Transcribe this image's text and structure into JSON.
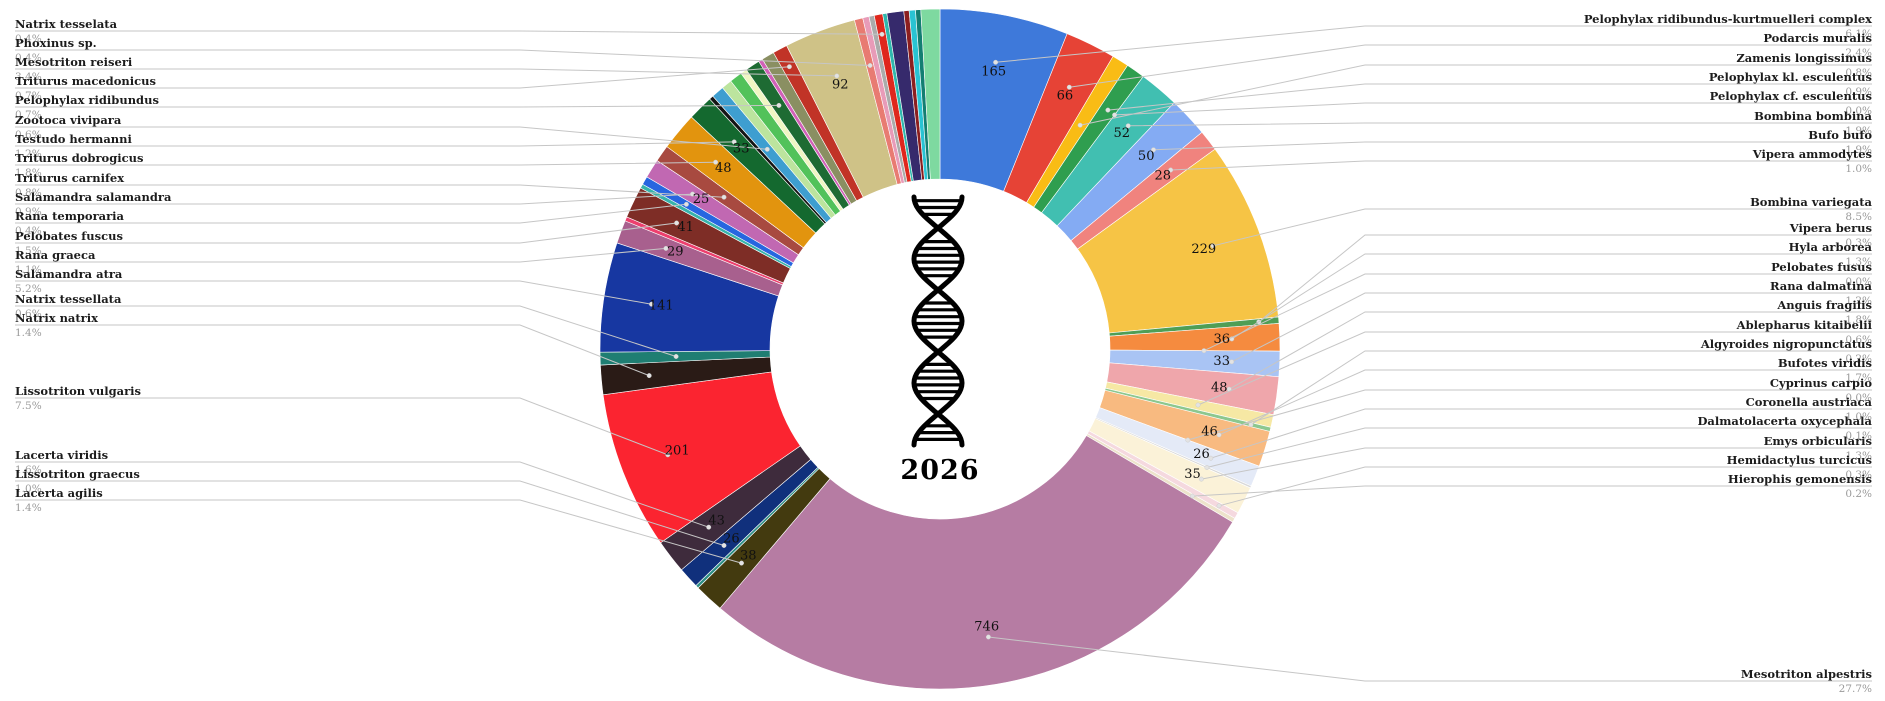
{
  "page": {
    "background": "#ffffff"
  },
  "chart_data": {
    "type": "donut",
    "title": "",
    "center": {
      "year_label": "2026",
      "icon": "dna-helix-icon"
    },
    "legend_position": "callout-labels-left-right",
    "label_percent_color": "#9b9b9b",
    "segments": [
      {
        "name": "Pelophylax ridibundus-kurtmuelleri complex",
        "pct": 6.1,
        "count": 165,
        "color": "#3E79DA"
      },
      {
        "name": "Podarcis muralis",
        "pct": 2.4,
        "count": 66,
        "color": "#E64336"
      },
      {
        "name": "Zamenis longissimus",
        "pct": 0.8,
        "count": null,
        "color": "#F9BC15"
      },
      {
        "name": "Pelophylax kl. esculentus",
        "pct": 0.9,
        "count": null,
        "color": "#2F9E4F"
      },
      {
        "name": "Pelophylax cf. esculentus",
        "pct": 0.0,
        "count": null,
        "color": "#BBBBBB"
      },
      {
        "name": "Bombina bombina",
        "pct": 1.9,
        "count": 52,
        "color": "#41BFB1"
      },
      {
        "name": "Bufo bufo",
        "pct": 1.9,
        "count": 50,
        "color": "#84ABF3"
      },
      {
        "name": "Vipera ammodytes",
        "pct": 1.0,
        "count": 28,
        "color": "#F0837E"
      },
      {
        "name": "Bombina variegata",
        "pct": 8.5,
        "count": 229,
        "color": "#F6C445"
      },
      {
        "name": "Vipera berus",
        "pct": 0.3,
        "count": null,
        "color": "#4F9E55"
      },
      {
        "name": "Hyla arborea",
        "pct": 1.3,
        "count": 36,
        "color": "#F58B3F"
      },
      {
        "name": "Pelobates fusus",
        "pct": 0.0,
        "count": null,
        "color": "#BBBBBB"
      },
      {
        "name": "Rana dalmatina",
        "pct": 1.2,
        "count": 33,
        "color": "#A9C4F4"
      },
      {
        "name": "Anguis fragilis",
        "pct": 1.8,
        "count": 48,
        "color": "#EFA6AB"
      },
      {
        "name": "Ablepharus kitaibelii",
        "pct": 0.6,
        "count": null,
        "color": "#F6E8A4"
      },
      {
        "name": "Algyroides nigropunctatus",
        "pct": 0.2,
        "count": null,
        "color": "#8CC78F"
      },
      {
        "name": "Bufotes viridis",
        "pct": 1.7,
        "count": 46,
        "color": "#F8BA80"
      },
      {
        "name": "Cyprinus carpio",
        "pct": 0.0,
        "count": null,
        "color": "#BBBBBB"
      },
      {
        "name": "Coronella austriaca",
        "pct": 1.0,
        "count": 26,
        "color": "#E4EAF7"
      },
      {
        "name": "Dalmatolacerta oxycephala",
        "pct": 0.1,
        "count": null,
        "color": "#D8D8D8"
      },
      {
        "name": "Emys orbicularis",
        "pct": 1.3,
        "count": 35,
        "color": "#FBF2D8"
      },
      {
        "name": "Hemidactylus turcicus",
        "pct": 0.3,
        "count": null,
        "color": "#F5D9DF"
      },
      {
        "name": "Hierophis gemonensis",
        "pct": 0.2,
        "count": null,
        "color": "#EDE3CB"
      },
      {
        "name": "Mesotriton alpestris",
        "pct": 27.7,
        "count": 746,
        "color": "#B67CA3"
      },
      {
        "name": "Lacerta agilis",
        "pct": 1.4,
        "count": 38,
        "color": "#433A0F"
      },
      {
        "name": "",
        "pct": 0.15,
        "count": null,
        "color": "#2F8F86"
      },
      {
        "name": "Lissotriton graecus",
        "pct": 1.0,
        "count": 26,
        "color": "#10307C"
      },
      {
        "name": "Lacerta viridis",
        "pct": 1.6,
        "count": 43,
        "color": "#3E2B3C"
      },
      {
        "name": "Lissotriton vulgaris",
        "pct": 7.5,
        "count": 201,
        "color": "#FB2430"
      },
      {
        "name": "Natrix natrix",
        "pct": 1.4,
        "count": null,
        "color": "#2A1B16"
      },
      {
        "name": "Natrix tessellata",
        "pct": 0.6,
        "count": null,
        "color": "#1F7E72"
      },
      {
        "name": "Salamandra atra",
        "pct": 5.2,
        "count": 141,
        "color": "#1737A1"
      },
      {
        "name": "Rana graeca",
        "pct": 1.1,
        "count": 29,
        "color": "#A8608E"
      },
      {
        "name": "",
        "pct": 0.2,
        "count": null,
        "color": "#ED3F6E"
      },
      {
        "name": "Pelobates fuscus",
        "pct": 1.5,
        "count": 41,
        "color": "#7E2D26"
      },
      {
        "name": "",
        "pct": 0.2,
        "count": null,
        "color": "#38B3AA"
      },
      {
        "name": "Rana temporaria",
        "pct": 0.4,
        "count": null,
        "color": "#2766E0"
      },
      {
        "name": "Salamandra salamandra",
        "pct": 0.9,
        "count": 25,
        "color": "#C168B2"
      },
      {
        "name": "Triturus carnifex",
        "pct": 0.8,
        "count": null,
        "color": "#A84A40"
      },
      {
        "name": "Triturus dobrogicus",
        "pct": 1.8,
        "count": 48,
        "color": "#E2940E"
      },
      {
        "name": "Testudo hermanni",
        "pct": 1.2,
        "count": 33,
        "color": "#14692F"
      },
      {
        "name": "",
        "pct": 0.2,
        "count": null,
        "color": "#141414"
      },
      {
        "name": "Zootoca vivipara",
        "pct": 0.6,
        "count": null,
        "color": "#3E9ED0"
      },
      {
        "name": "",
        "pct": 0.5,
        "count": null,
        "color": "#BCE49E"
      },
      {
        "name": "",
        "pct": 0.6,
        "count": null,
        "color": "#52C25A"
      },
      {
        "name": "",
        "pct": 0.3,
        "count": null,
        "color": "#F0F6C3"
      },
      {
        "name": "Pelophylax ridibundus",
        "pct": 0.7,
        "count": null,
        "color": "#1E6B33"
      },
      {
        "name": "",
        "pct": 0.2,
        "count": null,
        "color": "#D161B8"
      },
      {
        "name": "",
        "pct": 0.6,
        "count": null,
        "color": "#8A8F62"
      },
      {
        "name": "Triturus macedonicus",
        "pct": 0.7,
        "count": null,
        "color": "#C13327"
      },
      {
        "name": "Mesotriton reiseri",
        "pct": 3.4,
        "count": 92,
        "color": "#CFC287"
      },
      {
        "name": "Phoxinus sp.",
        "pct": 0.4,
        "count": null,
        "color": "#E87B72"
      },
      {
        "name": "",
        "pct": 0.3,
        "count": null,
        "color": "#E89BB8"
      },
      {
        "name": "",
        "pct": 0.25,
        "count": null,
        "color": "#ABABAB"
      },
      {
        "name": "Natrix tesselata",
        "pct": 0.4,
        "count": null,
        "color": "#DF271D"
      },
      {
        "name": "",
        "pct": 0.2,
        "count": null,
        "color": "#2FB8AD"
      },
      {
        "name": "",
        "pct": 0.8,
        "count": null,
        "color": "#362A6C"
      },
      {
        "name": "",
        "pct": 0.25,
        "count": null,
        "color": "#8C1F1F"
      },
      {
        "name": "",
        "pct": 0.3,
        "count": null,
        "color": "#29C3D3"
      },
      {
        "name": "",
        "pct": 0.25,
        "count": null,
        "color": "#137E72"
      },
      {
        "name": "",
        "pct": 0.9,
        "count": null,
        "color": "#7ED9A0"
      }
    ]
  }
}
